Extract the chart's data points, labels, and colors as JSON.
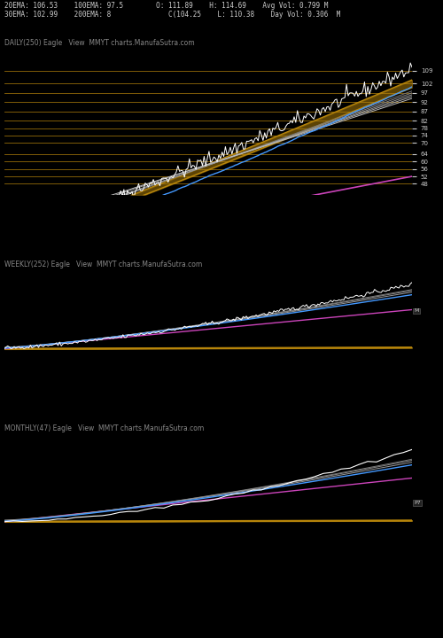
{
  "bg_color": "#000000",
  "text_color": "#cccccc",
  "title_color": "#888888",
  "header_text1": "20EMA: 106.53    100EMA: 97.5        O: 111.89    H: 114.69    Avg Vol: 0.799 M",
  "header_text2": "30EMA: 102.99    200EMA: 8              C(104.25    L: 110.38    Day Vol: 0.306  M",
  "daily_label": "DAILY(250) Eagle   View  MMYT charts.ManufaSutra.com",
  "weekly_label": "WEEKLY(252) Eagle   View  MMYT charts.ManufaSutra.com",
  "monthly_label": "MONTHLY(47) Eagle   View  MMYT charts.ManufaSutra.com",
  "horizontal_lines_color": "#b8860b",
  "daily_yticks": [
    48,
    52,
    56,
    60,
    64,
    70,
    74,
    78,
    82,
    87,
    92,
    97,
    102,
    109
  ],
  "pink_line_color": "#cc44bb",
  "blue_line_color": "#4499ff",
  "white_line_color": "#ffffff",
  "orange_band_color": "#b8860b"
}
